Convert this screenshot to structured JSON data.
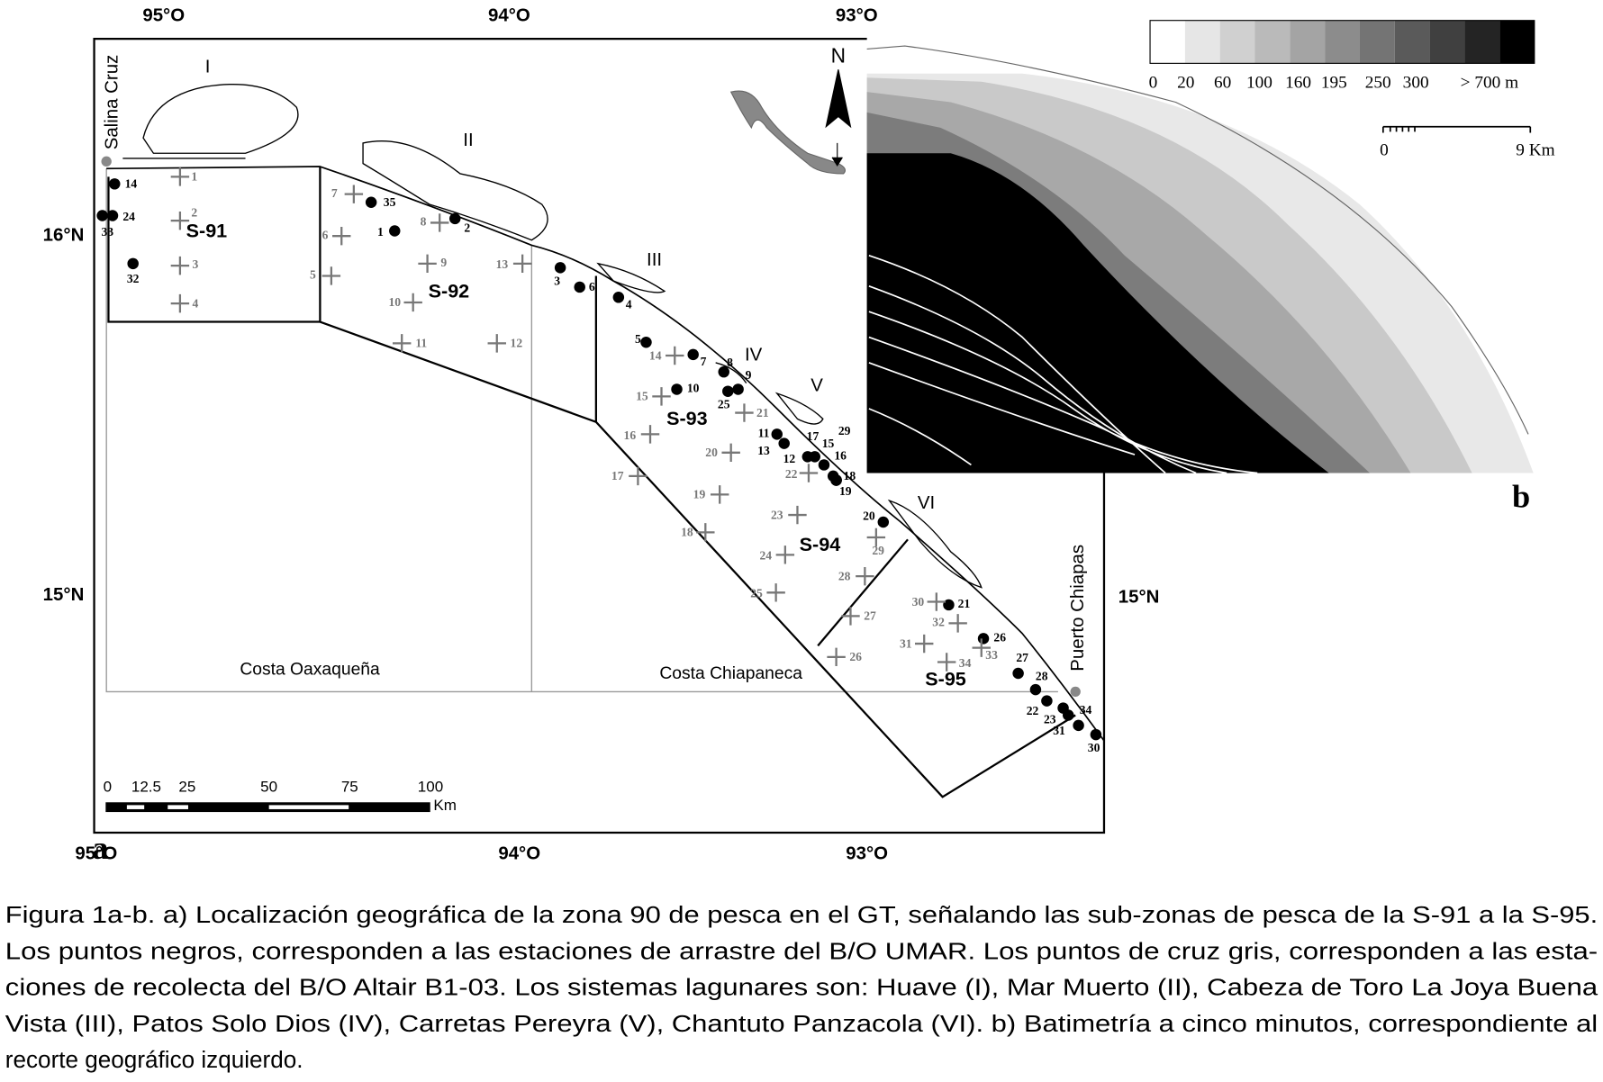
{
  "map_a": {
    "panel_label": "a",
    "longitude_labels": [
      "95°O",
      "94°O",
      "93°O"
    ],
    "latitude_labels": [
      "16°N",
      "15°N"
    ],
    "lagoon_labels": [
      "I",
      "II",
      "III",
      "IV",
      "V",
      "VI"
    ],
    "subzones": [
      "S-91",
      "S-92",
      "S-93",
      "S-94",
      "S-95"
    ],
    "regions": [
      "Costa Oaxaqueña",
      "Costa Chiapaneca"
    ],
    "places": [
      "Salina Cruz",
      "Puerto Chiapas"
    ],
    "north": "N",
    "scale": {
      "ticks": [
        0,
        12.5,
        25,
        50,
        75,
        100
      ],
      "unit": "Km"
    },
    "umar_stations": [
      14,
      24,
      33,
      32,
      35,
      1,
      2,
      3,
      6,
      4,
      5,
      7,
      8,
      9,
      10,
      25,
      11,
      13,
      12,
      17,
      15,
      16,
      29,
      18,
      19,
      20,
      21,
      26,
      27,
      28,
      22,
      23,
      31,
      34,
      30
    ],
    "altair_stations": [
      1,
      2,
      3,
      4,
      7,
      6,
      5,
      8,
      9,
      10,
      11,
      12,
      13,
      14,
      15,
      16,
      17,
      18,
      19,
      20,
      21,
      22,
      23,
      24,
      25,
      26,
      27,
      28,
      29,
      30,
      31,
      32,
      33,
      34
    ]
  },
  "map_b": {
    "panel_label": "b",
    "depth_legend": [
      "0",
      "20",
      "60",
      "100",
      "160",
      "195",
      "250",
      "300",
      "> 700 m"
    ],
    "scale": [
      "0",
      "9 Km"
    ]
  },
  "caption": [
    "Figura 1a-b. a) Localización geográfica de la zona 90 de pesca en el GT, señalando las sub-zonas de pesca de la S-91 a la S-95.",
    "Los puntos negros, corresponden a las estaciones de arrastre del B/O UMAR. Los puntos de cruz gris, corresponden a las esta-",
    "ciones de recolecta del B/O Altair B1-03. Los sistemas lagunares son: Huave (I), Mar Muerto (II), Cabeza de Toro La Joya Buena",
    "Vista (III), Patos Solo Dios (IV), Carretas Pereyra (V), Chantuto Panzacola (VI). b) Batimetría a cinco minutos, correspondiente al",
    "recorte geográfico izquierdo."
  ]
}
